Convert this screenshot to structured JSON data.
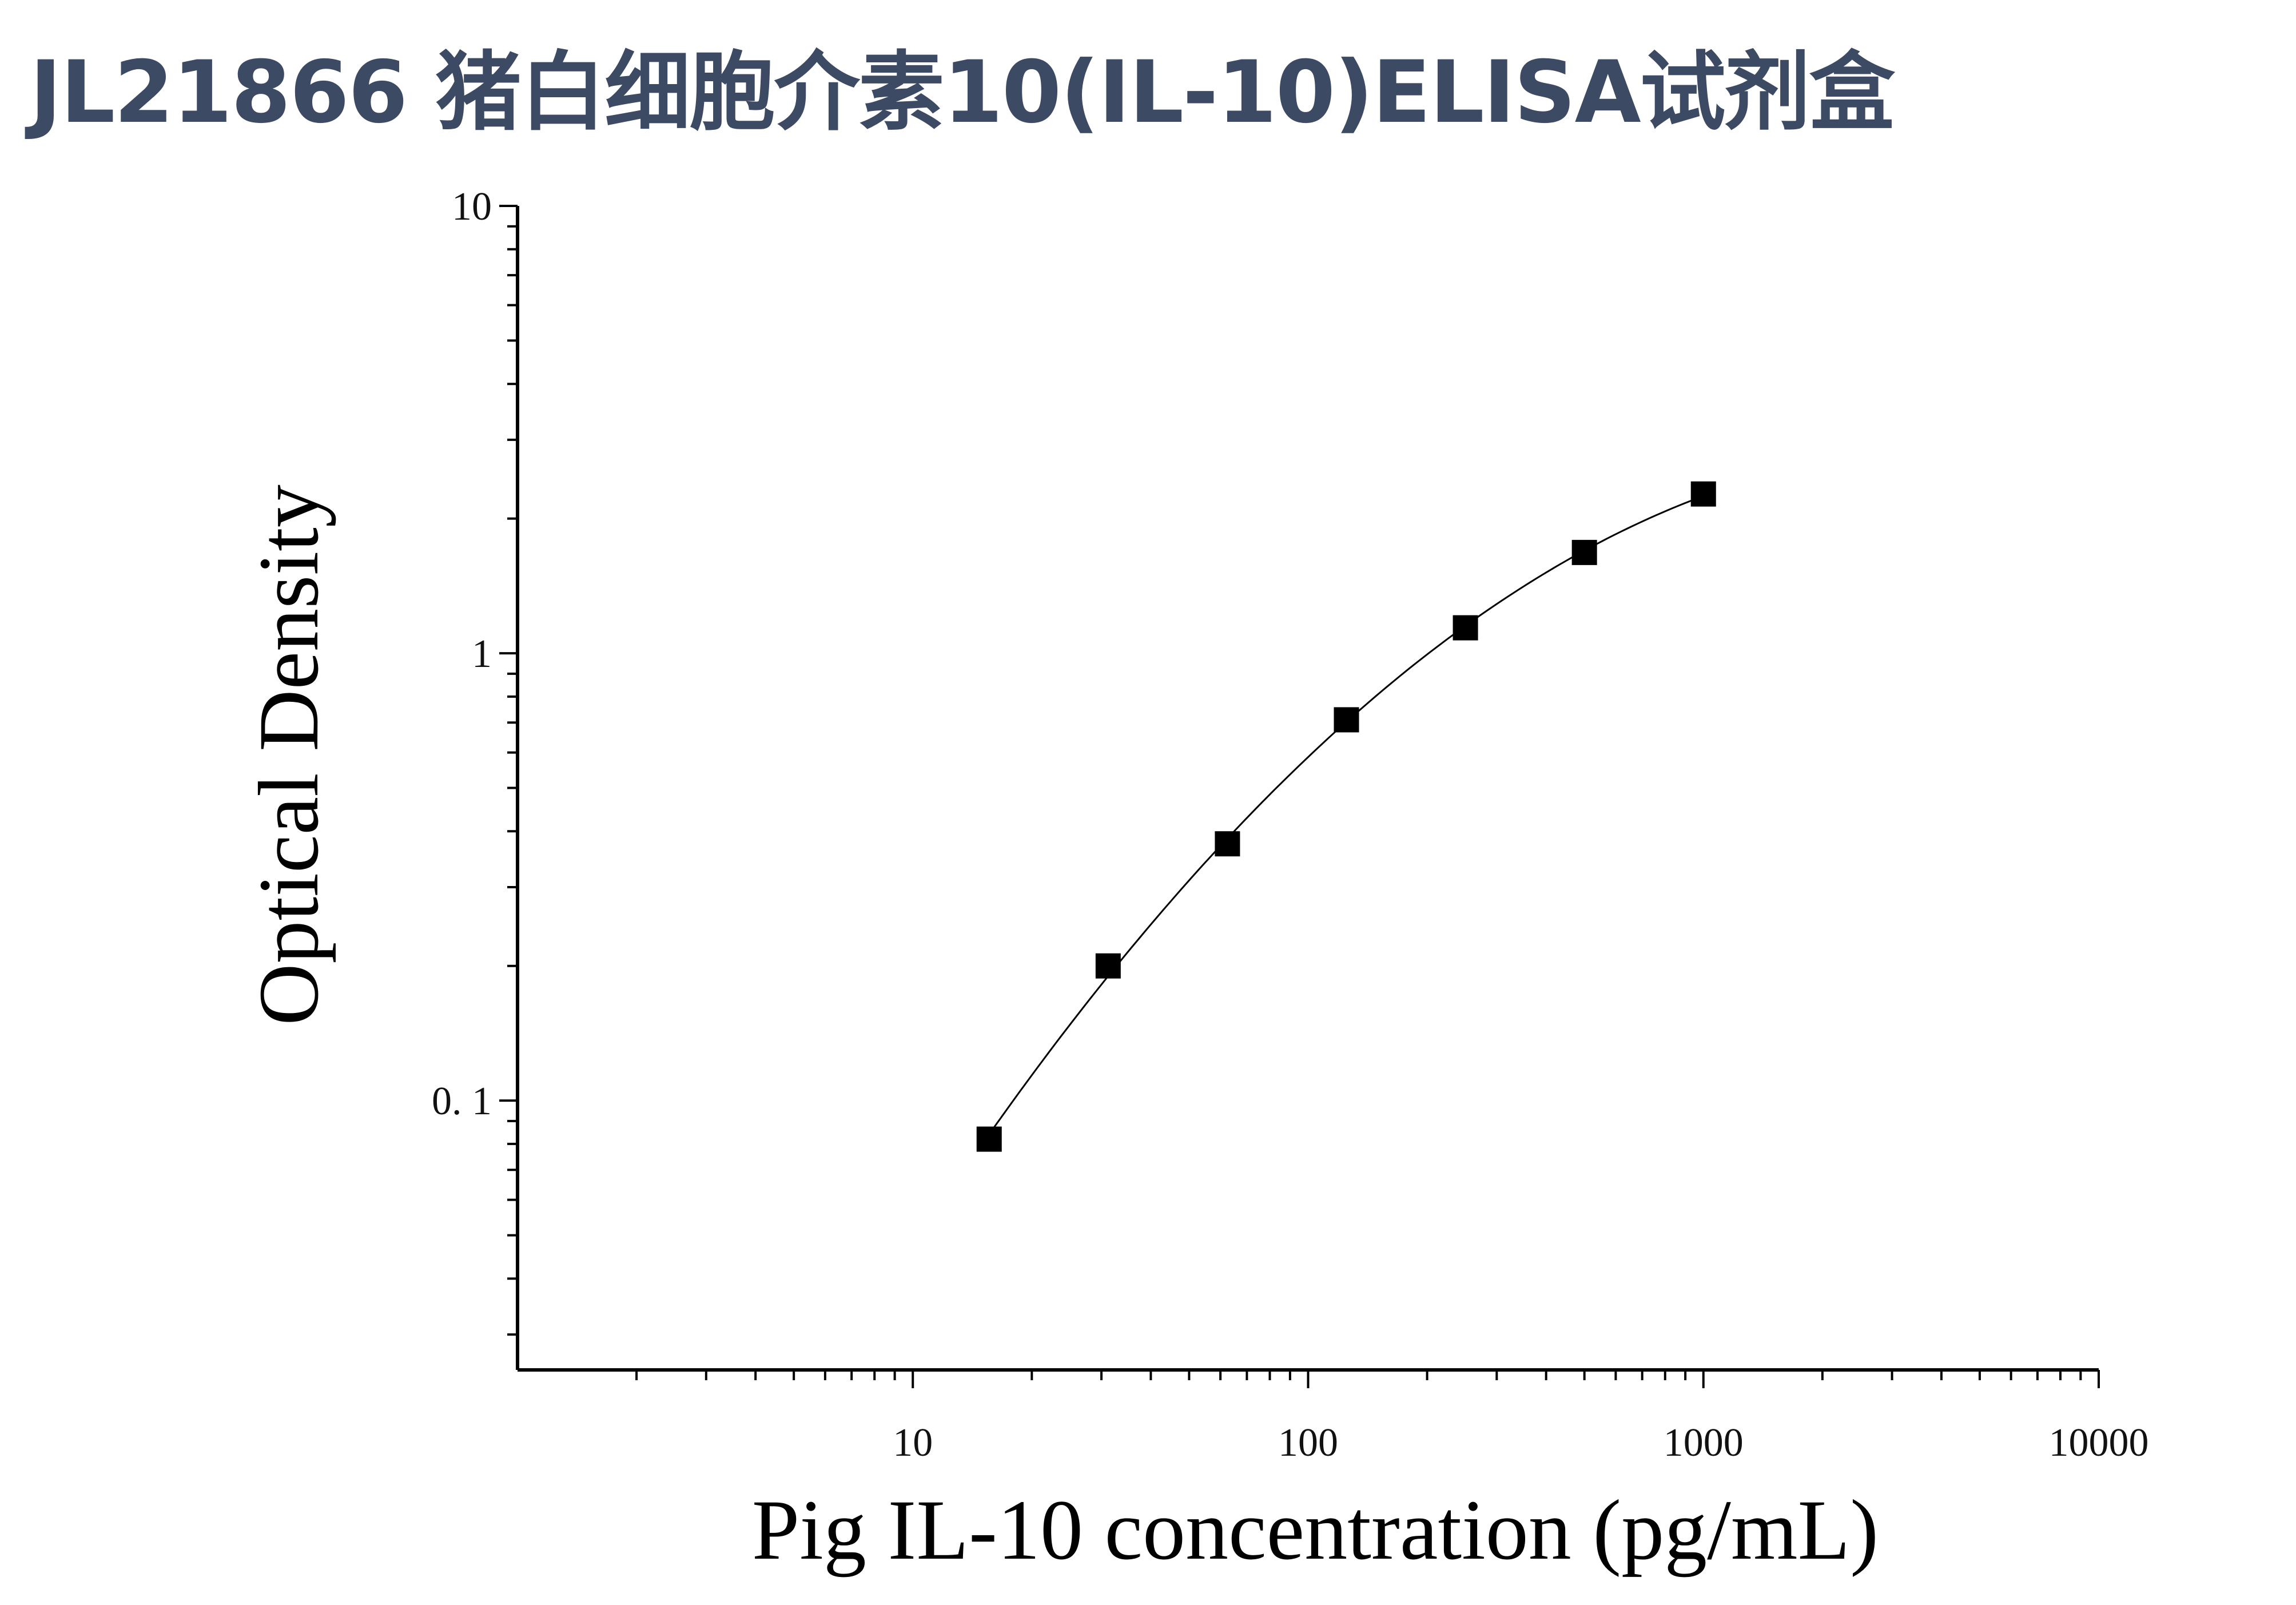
{
  "title": "JL21866 猪白细胞介素10(IL-10)ELISA试剂盒",
  "chart_data": {
    "type": "scatter",
    "title": "",
    "xlabel": "Pig IL-10 concentration (pg/mL)",
    "ylabel": "Optical Density",
    "xscale": "log",
    "yscale": "log",
    "xlim": [
      1,
      10000
    ],
    "ylim": [
      0.025,
      10
    ],
    "x_ticks": [
      {
        "value": 10,
        "label": "10"
      },
      {
        "value": 100,
        "label": "100"
      },
      {
        "value": 1000,
        "label": "1000"
      },
      {
        "value": 10000,
        "label": "10000"
      }
    ],
    "y_ticks": [
      {
        "value": 0.1,
        "label": "0. 1"
      },
      {
        "value": 1,
        "label": "1"
      },
      {
        "value": 10,
        "label": "10"
      }
    ],
    "grid": false,
    "series": [
      {
        "marker": "square",
        "color": "#000000",
        "fit_curve": true,
        "x": [
          15.6,
          31.2,
          62.5,
          125,
          250,
          500,
          1000
        ],
        "y": [
          0.082,
          0.2,
          0.375,
          0.71,
          1.14,
          1.68,
          2.27
        ]
      }
    ]
  }
}
